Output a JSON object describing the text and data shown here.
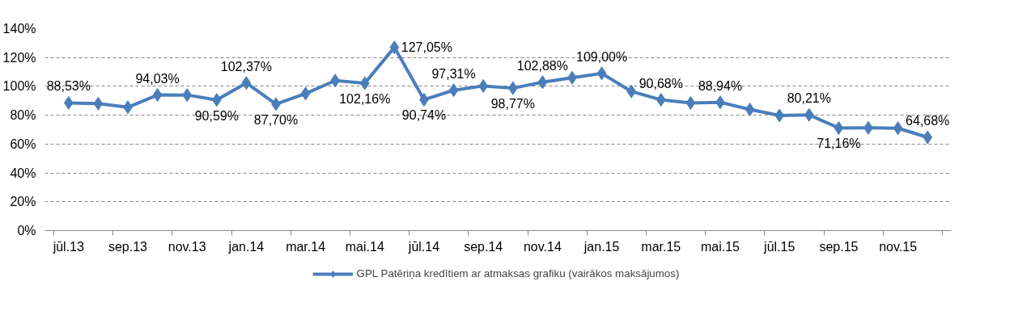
{
  "chart_data": {
    "type": "line",
    "categories": [
      "jūl.13",
      null,
      "sep.13",
      null,
      "nov.13",
      null,
      "jan.14",
      null,
      "mar.14",
      null,
      "mai.14",
      null,
      "jūl.14",
      null,
      "sep.14",
      null,
      "nov.14",
      null,
      "jan.15",
      null,
      "mar.15",
      null,
      "mai.15",
      null,
      "jūl.15",
      null,
      "sep.15",
      null,
      "nov.15",
      null
    ],
    "series": [
      {
        "name": "GPL Patēriņa kredītiem ar atmaksas grafiku (vairākos maksājumos)",
        "color": "#4a7ebb",
        "values": [
          88.53,
          88,
          85.5,
          94.03,
          94,
          90.59,
          102.37,
          87.7,
          95,
          104,
          102.16,
          127.05,
          90.74,
          97.31,
          100.3,
          98.77,
          102.88,
          106,
          109.0,
          96.5,
          90.68,
          88.5,
          88.94,
          84,
          79.8,
          80.21,
          71.16,
          71.2,
          71,
          64.68
        ],
        "value_labels": [
          "88,53%",
          null,
          null,
          "94,03%",
          null,
          "90,59%",
          "102,37%",
          "87,70%",
          null,
          null,
          "102,16%",
          "127,05%",
          "90,74%",
          "97,31%",
          null,
          "98,77%",
          "102,88%",
          null,
          "109,00%",
          null,
          "90,68%",
          null,
          "88,94%",
          null,
          null,
          "80,21%",
          "71,16%",
          null,
          null,
          "64,68%"
        ]
      }
    ],
    "ylim": [
      0,
      140
    ],
    "yticks": [
      {
        "value": 0,
        "label": "0%"
      },
      {
        "value": 20,
        "label": "20%"
      },
      {
        "value": 40,
        "label": "40%"
      },
      {
        "value": 60,
        "label": "60%"
      },
      {
        "value": 80,
        "label": "80%"
      },
      {
        "value": 100,
        "label": "100%"
      },
      {
        "value": 120,
        "label": "120%"
      },
      {
        "value": 140,
        "label": "140%"
      }
    ],
    "grid": "y",
    "legend": "bottom",
    "marker": "diamond",
    "line_style": "solid"
  }
}
